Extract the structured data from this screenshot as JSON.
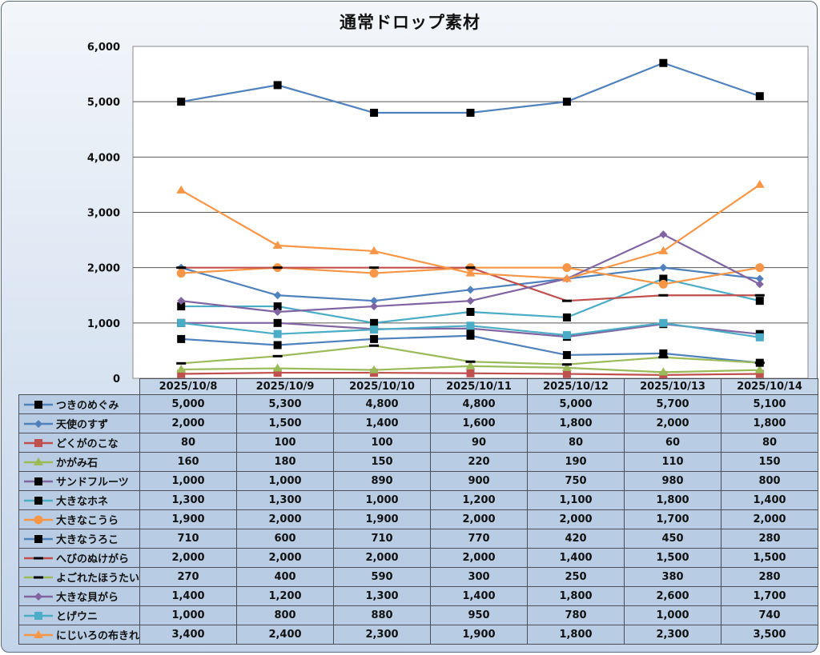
{
  "chart_data": {
    "type": "line",
    "title": "通常ドロップ素材",
    "xlabel": "",
    "ylabel": "",
    "ylim": [
      0,
      6000
    ],
    "yticks": [
      0,
      1000,
      2000,
      3000,
      4000,
      5000,
      6000
    ],
    "ytick_labels": [
      "0",
      "1,000",
      "2,000",
      "3,000",
      "4,000",
      "5,000",
      "6,000"
    ],
    "grid": true,
    "legend": "data-table",
    "categories": [
      "2025/10/8",
      "2025/10/9",
      "2025/10/10",
      "2025/10/11",
      "2025/10/12",
      "2025/10/13",
      "2025/10/14"
    ],
    "series": [
      {
        "name": "つきのめぐみ",
        "color": "#4f81bd",
        "marker": "square",
        "marker_color": "#000000",
        "values": [
          5000,
          5300,
          4800,
          4800,
          5000,
          5700,
          5100
        ],
        "labels": [
          "5,000",
          "5,300",
          "4,800",
          "4,800",
          "5,000",
          "5,700",
          "5,100"
        ]
      },
      {
        "name": "天使のすず",
        "color": "#4f81bd",
        "marker": "diamond",
        "marker_color": "#4f81bd",
        "values": [
          2000,
          1500,
          1400,
          1600,
          1800,
          2000,
          1800
        ],
        "labels": [
          "2,000",
          "1,500",
          "1,400",
          "1,600",
          "1,800",
          "2,000",
          "1,800"
        ]
      },
      {
        "name": "どくがのこな",
        "color": "#c0504d",
        "marker": "square",
        "marker_color": "#c0504d",
        "values": [
          80,
          100,
          100,
          90,
          80,
          60,
          80
        ],
        "labels": [
          "80",
          "100",
          "100",
          "90",
          "80",
          "60",
          "80"
        ]
      },
      {
        "name": "かがみ石",
        "color": "#9bbb59",
        "marker": "triangle",
        "marker_color": "#9bbb59",
        "values": [
          160,
          180,
          150,
          220,
          190,
          110,
          150
        ],
        "labels": [
          "160",
          "180",
          "150",
          "220",
          "190",
          "110",
          "150"
        ]
      },
      {
        "name": "サンドフルーツ",
        "color": "#8064a2",
        "marker": "square",
        "marker_color": "#000000",
        "values": [
          1000,
          1000,
          890,
          900,
          750,
          980,
          800
        ],
        "labels": [
          "1,000",
          "1,000",
          "890",
          "900",
          "750",
          "980",
          "800"
        ]
      },
      {
        "name": "大きなホネ",
        "color": "#4bacc6",
        "marker": "square",
        "marker_color": "#000000",
        "values": [
          1300,
          1300,
          1000,
          1200,
          1100,
          1800,
          1400
        ],
        "labels": [
          "1,300",
          "1,300",
          "1,000",
          "1,200",
          "1,100",
          "1,800",
          "1,400"
        ]
      },
      {
        "name": "大きなこうら",
        "color": "#f79646",
        "marker": "circle",
        "marker_color": "#f79646",
        "values": [
          1900,
          2000,
          1900,
          2000,
          2000,
          1700,
          2000
        ],
        "labels": [
          "1,900",
          "2,000",
          "1,900",
          "2,000",
          "2,000",
          "1,700",
          "2,000"
        ]
      },
      {
        "name": "大きなうろこ",
        "color": "#4f81bd",
        "marker": "square",
        "marker_color": "#000000",
        "values": [
          710,
          600,
          710,
          770,
          420,
          450,
          280
        ],
        "labels": [
          "710",
          "600",
          "710",
          "770",
          "420",
          "450",
          "280"
        ]
      },
      {
        "name": "へびのぬけがら",
        "color": "#c0504d",
        "marker": "dash",
        "marker_color": "#000000",
        "values": [
          2000,
          2000,
          2000,
          2000,
          1400,
          1500,
          1500
        ],
        "labels": [
          "2,000",
          "2,000",
          "2,000",
          "2,000",
          "1,400",
          "1,500",
          "1,500"
        ]
      },
      {
        "name": "よごれたほうたい",
        "color": "#9bbb59",
        "marker": "dash",
        "marker_color": "#000000",
        "values": [
          270,
          400,
          590,
          300,
          250,
          380,
          280
        ],
        "labels": [
          "270",
          "400",
          "590",
          "300",
          "250",
          "380",
          "280"
        ]
      },
      {
        "name": "大きな貝がら",
        "color": "#8064a2",
        "marker": "diamond",
        "marker_color": "#8064a2",
        "values": [
          1400,
          1200,
          1300,
          1400,
          1800,
          2600,
          1700
        ],
        "labels": [
          "1,400",
          "1,200",
          "1,300",
          "1,400",
          "1,800",
          "2,600",
          "1,700"
        ]
      },
      {
        "name": "とげウニ",
        "color": "#4bacc6",
        "marker": "square",
        "marker_color": "#4bacc6",
        "values": [
          1000,
          800,
          880,
          950,
          780,
          1000,
          740
        ],
        "labels": [
          "1,000",
          "800",
          "880",
          "950",
          "780",
          "1,000",
          "740"
        ]
      },
      {
        "name": "にじいろの布きれ",
        "color": "#f79646",
        "marker": "triangle",
        "marker_color": "#f79646",
        "values": [
          3400,
          2400,
          2300,
          1900,
          1800,
          2300,
          3500
        ],
        "labels": [
          "3,400",
          "2,400",
          "2,300",
          "1,900",
          "1,800",
          "2,300",
          "3,500"
        ]
      }
    ]
  }
}
